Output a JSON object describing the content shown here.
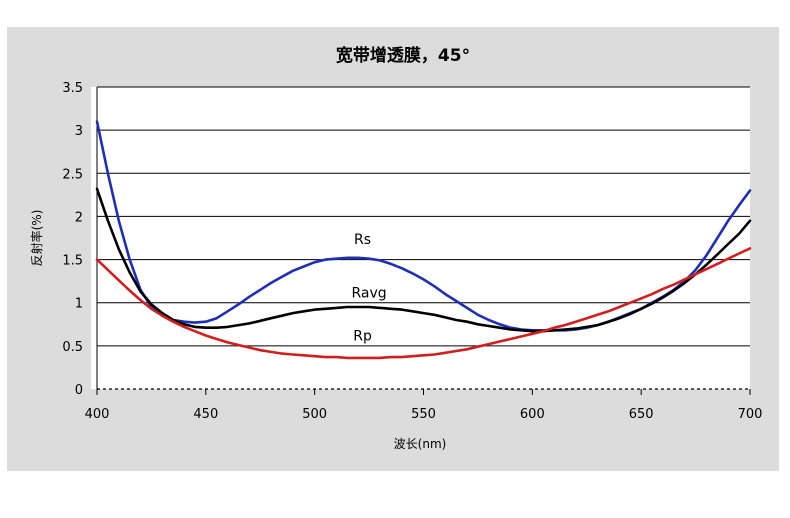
{
  "chart_data": {
    "type": "line",
    "title": "宽带增透膜，45°",
    "xlabel": "波长(nm)",
    "ylabel": "反射率(%)",
    "xlim": [
      400,
      700
    ],
    "ylim": [
      0,
      3.5
    ],
    "x_ticks": [
      "400",
      "450",
      "500",
      "550",
      "600",
      "650",
      "700"
    ],
    "y_ticks": [
      "0",
      "0.5",
      "1",
      "1.5",
      "2",
      "2.5",
      "3",
      "3.5"
    ],
    "grid": "horizontal",
    "series": [
      {
        "name": "Rs",
        "color": "#1f2fb4",
        "x": [
          400,
          405,
          410,
          415,
          420,
          425,
          430,
          435,
          440,
          445,
          450,
          455,
          460,
          465,
          470,
          475,
          480,
          485,
          490,
          495,
          500,
          505,
          510,
          515,
          520,
          525,
          530,
          535,
          540,
          545,
          550,
          555,
          560,
          565,
          570,
          575,
          580,
          585,
          590,
          595,
          600,
          605,
          610,
          615,
          620,
          625,
          630,
          635,
          640,
          645,
          650,
          655,
          660,
          665,
          670,
          675,
          680,
          685,
          690,
          695,
          700
        ],
        "values": [
          3.1,
          2.5,
          1.95,
          1.5,
          1.15,
          0.95,
          0.85,
          0.8,
          0.78,
          0.77,
          0.78,
          0.82,
          0.9,
          0.98,
          1.07,
          1.15,
          1.23,
          1.3,
          1.37,
          1.42,
          1.47,
          1.5,
          1.51,
          1.52,
          1.52,
          1.51,
          1.49,
          1.45,
          1.4,
          1.34,
          1.27,
          1.19,
          1.1,
          1.02,
          0.94,
          0.86,
          0.8,
          0.75,
          0.71,
          0.69,
          0.68,
          0.68,
          0.68,
          0.68,
          0.69,
          0.71,
          0.74,
          0.78,
          0.83,
          0.88,
          0.93,
          1.0,
          1.07,
          1.15,
          1.25,
          1.38,
          1.55,
          1.75,
          1.95,
          2.13,
          2.3
        ]
      },
      {
        "name": "Ravg",
        "color": "#000000",
        "x": [
          400,
          405,
          410,
          415,
          420,
          425,
          430,
          435,
          440,
          445,
          450,
          455,
          460,
          465,
          470,
          475,
          480,
          485,
          490,
          495,
          500,
          505,
          510,
          515,
          520,
          525,
          530,
          535,
          540,
          545,
          550,
          555,
          560,
          565,
          570,
          575,
          580,
          585,
          590,
          595,
          600,
          605,
          610,
          615,
          620,
          625,
          630,
          635,
          640,
          645,
          650,
          655,
          660,
          665,
          670,
          675,
          680,
          685,
          690,
          695,
          700
        ],
        "values": [
          2.32,
          1.95,
          1.62,
          1.35,
          1.13,
          0.98,
          0.88,
          0.8,
          0.75,
          0.72,
          0.71,
          0.71,
          0.72,
          0.74,
          0.76,
          0.79,
          0.82,
          0.85,
          0.88,
          0.9,
          0.92,
          0.93,
          0.94,
          0.95,
          0.95,
          0.95,
          0.94,
          0.93,
          0.92,
          0.9,
          0.88,
          0.86,
          0.83,
          0.8,
          0.78,
          0.75,
          0.73,
          0.71,
          0.69,
          0.68,
          0.67,
          0.67,
          0.68,
          0.69,
          0.7,
          0.72,
          0.74,
          0.78,
          0.82,
          0.87,
          0.93,
          0.99,
          1.06,
          1.14,
          1.23,
          1.33,
          1.44,
          1.56,
          1.68,
          1.8,
          1.95
        ]
      },
      {
        "name": "Rp",
        "color": "#d01f1f",
        "x": [
          400,
          405,
          410,
          415,
          420,
          425,
          430,
          435,
          440,
          445,
          450,
          455,
          460,
          465,
          470,
          475,
          480,
          485,
          490,
          495,
          500,
          505,
          510,
          515,
          520,
          525,
          530,
          535,
          540,
          545,
          550,
          555,
          560,
          565,
          570,
          575,
          580,
          585,
          590,
          595,
          600,
          605,
          610,
          615,
          620,
          625,
          630,
          635,
          640,
          645,
          650,
          655,
          660,
          665,
          670,
          675,
          680,
          685,
          690,
          695,
          700
        ],
        "values": [
          1.5,
          1.38,
          1.26,
          1.14,
          1.03,
          0.93,
          0.85,
          0.78,
          0.72,
          0.67,
          0.62,
          0.58,
          0.54,
          0.51,
          0.48,
          0.45,
          0.43,
          0.41,
          0.4,
          0.39,
          0.38,
          0.37,
          0.37,
          0.36,
          0.36,
          0.36,
          0.36,
          0.37,
          0.37,
          0.38,
          0.39,
          0.4,
          0.42,
          0.44,
          0.46,
          0.49,
          0.52,
          0.55,
          0.58,
          0.61,
          0.64,
          0.67,
          0.71,
          0.74,
          0.78,
          0.82,
          0.86,
          0.9,
          0.95,
          1.0,
          1.05,
          1.1,
          1.16,
          1.21,
          1.27,
          1.33,
          1.39,
          1.45,
          1.51,
          1.57,
          1.63
        ]
      }
    ],
    "labels": [
      {
        "text": "Rs",
        "x": 522,
        "y": 1.68
      },
      {
        "text": "Ravg",
        "x": 525,
        "y": 1.06
      },
      {
        "text": "Rp",
        "x": 522,
        "y": 0.56
      }
    ]
  }
}
